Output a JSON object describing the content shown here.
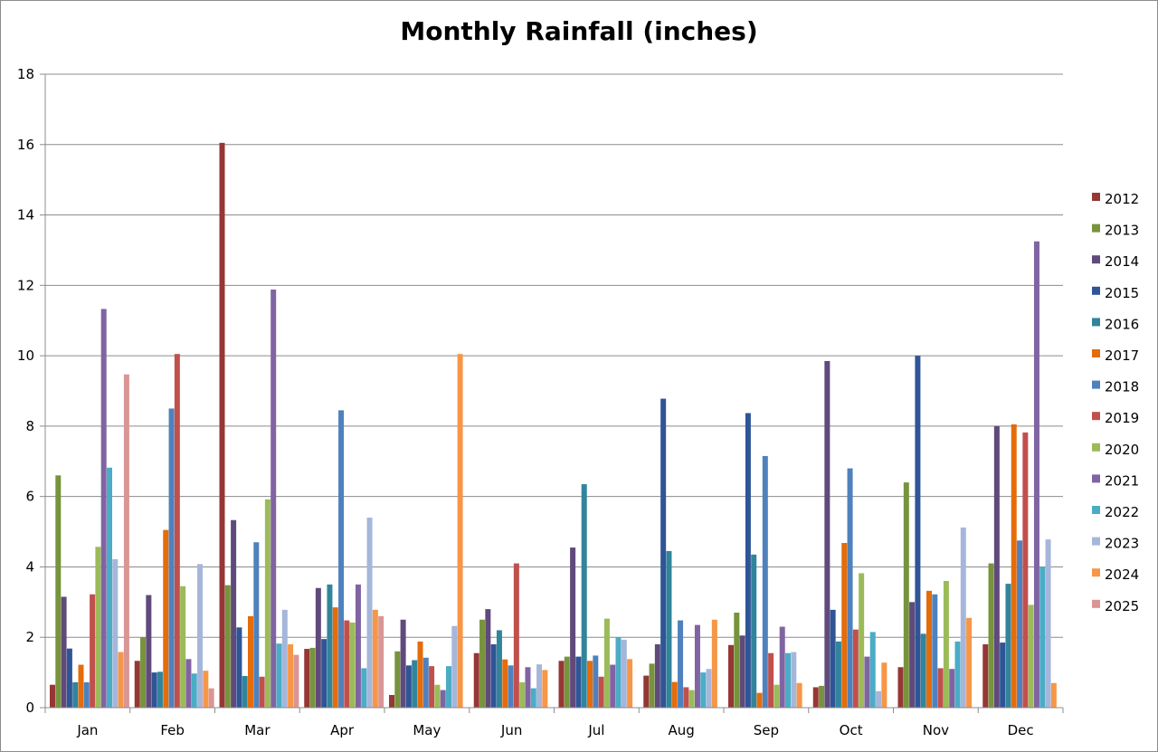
{
  "chart_data": {
    "type": "bar",
    "title": "Monthly Rainfall (inches)",
    "xlabel": "",
    "ylabel": "",
    "ylim": [
      0,
      18
    ],
    "yticks": [
      0,
      2,
      4,
      6,
      8,
      10,
      12,
      14,
      16,
      18
    ],
    "grid": true,
    "legend_position": "right",
    "categories": [
      "Jan",
      "Feb",
      "Mar",
      "Apr",
      "May",
      "Jun",
      "Jul",
      "Aug",
      "Sep",
      "Oct",
      "Nov",
      "Dec"
    ],
    "series": [
      {
        "name": "2012",
        "color": "#953735",
        "values": [
          0.65,
          1.33,
          16.05,
          1.67,
          0.36,
          1.55,
          1.33,
          0.91,
          1.78,
          0.58,
          1.15,
          1.8
        ]
      },
      {
        "name": "2013",
        "color": "#77933c",
        "values": [
          6.6,
          2.0,
          3.48,
          1.7,
          1.6,
          2.5,
          1.45,
          1.25,
          2.7,
          0.62,
          6.4,
          4.1
        ]
      },
      {
        "name": "2014",
        "color": "#604a7b",
        "values": [
          3.15,
          3.2,
          5.33,
          3.4,
          2.5,
          2.8,
          4.55,
          1.8,
          2.05,
          9.85,
          3.0,
          8.0
        ]
      },
      {
        "name": "2015",
        "color": "#2f5597",
        "values": [
          1.68,
          1.0,
          2.28,
          1.95,
          1.2,
          1.8,
          1.45,
          8.78,
          8.37,
          2.78,
          10.0,
          1.85
        ]
      },
      {
        "name": "2016",
        "color": "#31849b",
        "values": [
          0.72,
          1.02,
          0.9,
          3.5,
          1.35,
          2.2,
          6.35,
          4.45,
          4.35,
          1.88,
          2.1,
          3.52
        ]
      },
      {
        "name": "2017",
        "color": "#e46c0a",
        "values": [
          1.22,
          5.05,
          2.6,
          2.85,
          1.88,
          1.37,
          1.33,
          0.73,
          0.42,
          4.68,
          3.32,
          8.05
        ]
      },
      {
        "name": "2018",
        "color": "#4f81bd",
        "values": [
          0.72,
          8.5,
          4.7,
          8.45,
          1.42,
          1.2,
          1.48,
          2.48,
          7.15,
          6.8,
          3.22,
          4.75
        ]
      },
      {
        "name": "2019",
        "color": "#c0504d",
        "values": [
          3.22,
          10.05,
          0.88,
          2.48,
          1.18,
          4.1,
          0.88,
          0.58,
          1.55,
          2.22,
          1.12,
          7.82
        ]
      },
      {
        "name": "2020",
        "color": "#9bbb59",
        "values": [
          4.57,
          3.45,
          5.92,
          2.42,
          0.65,
          0.72,
          2.53,
          0.5,
          0.65,
          3.82,
          3.6,
          2.92
        ]
      },
      {
        "name": "2021",
        "color": "#8064a2",
        "values": [
          11.33,
          1.38,
          11.88,
          3.5,
          0.5,
          1.15,
          1.22,
          2.35,
          2.3,
          1.45,
          1.1,
          13.25
        ]
      },
      {
        "name": "2022",
        "color": "#4bacc6",
        "values": [
          6.82,
          0.97,
          1.82,
          1.12,
          1.18,
          0.55,
          2.0,
          1.0,
          1.55,
          2.15,
          1.88,
          4.0
        ]
      },
      {
        "name": "2023",
        "color": "#a6b6db",
        "values": [
          4.22,
          4.08,
          2.78,
          5.4,
          2.32,
          1.23,
          1.93,
          1.1,
          1.58,
          0.47,
          5.12,
          4.78
        ]
      },
      {
        "name": "2024",
        "color": "#f79646",
        "values": [
          1.58,
          1.05,
          1.8,
          2.78,
          10.05,
          1.07,
          1.38,
          2.5,
          0.7,
          1.28,
          2.55,
          0.7
        ]
      },
      {
        "name": "2025",
        "color": "#d99694",
        "values": [
          9.47,
          0.55,
          1.5,
          2.6,
          null,
          null,
          null,
          null,
          null,
          null,
          null,
          null
        ]
      }
    ]
  }
}
